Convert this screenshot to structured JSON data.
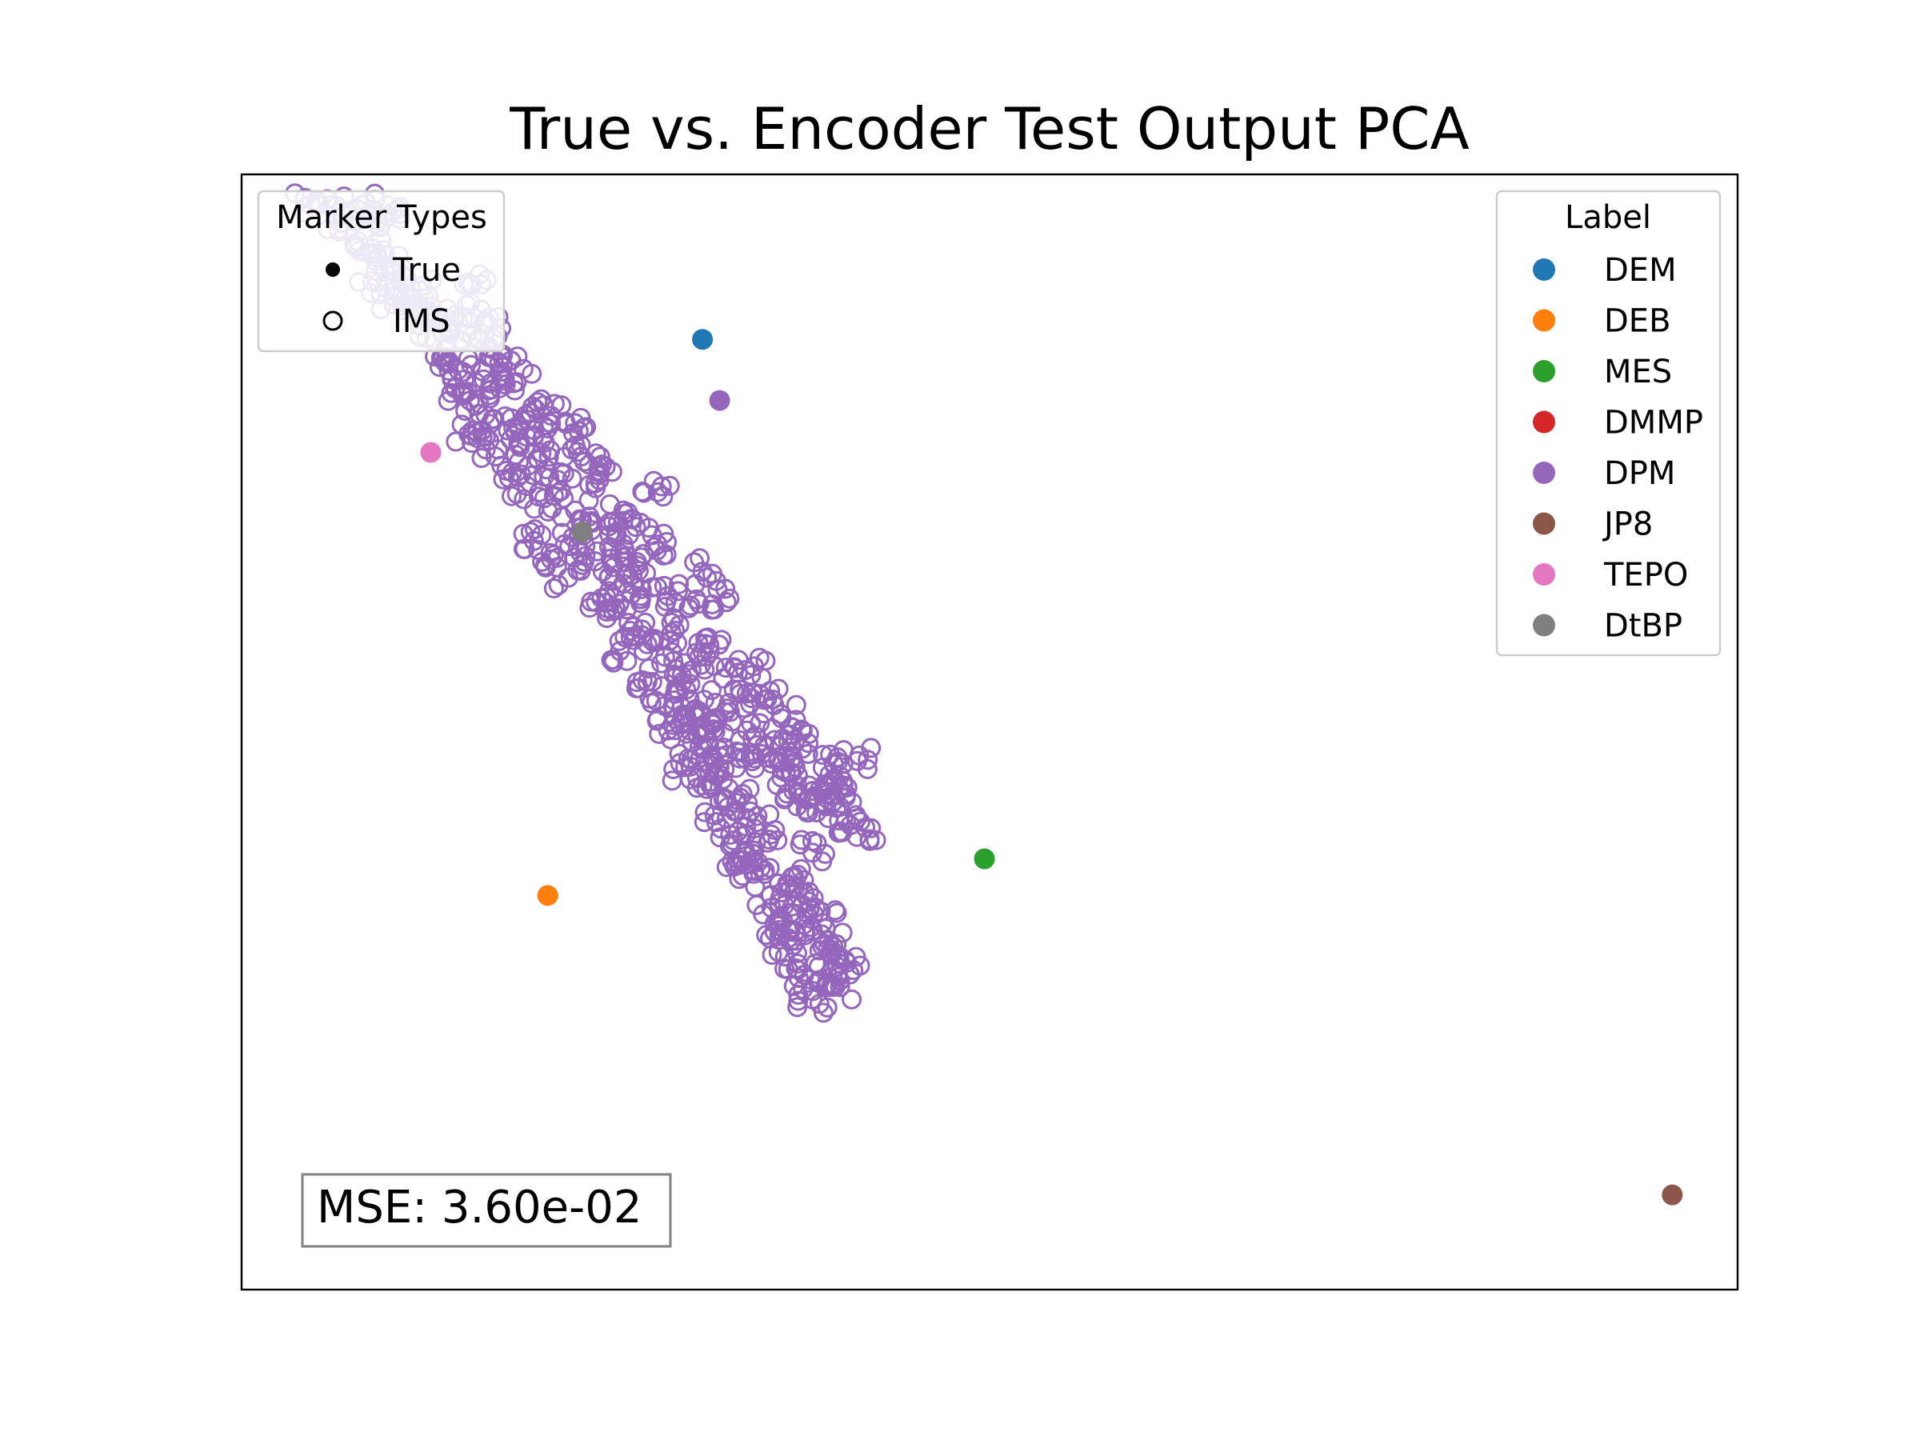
{
  "chart_data": {
    "type": "scatter",
    "title": "True vs. Encoder Test Output PCA",
    "xlabel": "",
    "ylabel": "",
    "xlim": [
      -1.3,
      3.05
    ],
    "ylim": [
      -2.35,
      1.3
    ],
    "ticks_visible": false,
    "grid": false,
    "annotation": "MSE: 3.60e-02",
    "annotation_position": "bottom-left",
    "marker_legend": {
      "title": "Marker Types",
      "position": "top-left",
      "entries": [
        {
          "label": "True",
          "marker": "filled-circle",
          "color": "#000000"
        },
        {
          "label": "IMS",
          "marker": "open-circle",
          "color": "#000000"
        }
      ]
    },
    "label_legend": {
      "title": "Label",
      "position": "top-right",
      "entries": [
        {
          "label": "DEM",
          "color": "#1f77b4"
        },
        {
          "label": "DEB",
          "color": "#ff7f0e"
        },
        {
          "label": "MES",
          "color": "#2ca02c"
        },
        {
          "label": "DMMP",
          "color": "#d62728"
        },
        {
          "label": "DPM",
          "color": "#9467bd"
        },
        {
          "label": "JP8",
          "color": "#8c564b"
        },
        {
          "label": "TEPO",
          "color": "#e377c2"
        },
        {
          "label": "DtBP",
          "color": "#7f7f7f"
        }
      ]
    },
    "series": [
      {
        "name": "DEM",
        "marker": "True",
        "color": "#1f77b4",
        "points": [
          [
            0.04,
            0.76
          ]
        ]
      },
      {
        "name": "DEB",
        "marker": "True",
        "color": "#ff7f0e",
        "points": [
          [
            -0.41,
            -1.06
          ]
        ]
      },
      {
        "name": "MES",
        "marker": "True",
        "color": "#2ca02c",
        "points": [
          [
            0.86,
            -0.94
          ]
        ]
      },
      {
        "name": "DPM",
        "marker": "True",
        "color": "#9467bd",
        "points": [
          [
            0.09,
            0.56
          ]
        ]
      },
      {
        "name": "JP8",
        "marker": "True",
        "color": "#8c564b",
        "points": [
          [
            2.86,
            -2.04
          ]
        ]
      },
      {
        "name": "TEPO",
        "marker": "True",
        "color": "#e377c2",
        "points": [
          [
            -0.75,
            0.39
          ]
        ]
      },
      {
        "name": "DtBP",
        "marker": "True",
        "color": "#7f7f7f",
        "points": [
          [
            -0.31,
            0.13
          ]
        ]
      },
      {
        "name": "DPM",
        "marker": "IMS",
        "color": "#9467bd",
        "description_points": "dense cloud of open circles along a diagonal band",
        "points": [
          [
            -1.1,
            1.2
          ],
          [
            -1.04,
            1.2
          ],
          [
            -0.95,
            1.2
          ],
          [
            -1.01,
            1.14
          ],
          [
            -0.96,
            1.08
          ],
          [
            -0.92,
            1.04
          ],
          [
            -0.87,
            1.0
          ],
          [
            -0.82,
            0.96
          ],
          [
            -0.78,
            0.92
          ],
          [
            -0.8,
            0.87
          ],
          [
            -0.76,
            0.83
          ],
          [
            -0.7,
            0.8
          ],
          [
            -0.68,
            0.84
          ],
          [
            -0.63,
            0.77
          ],
          [
            -0.58,
            0.73
          ],
          [
            -0.72,
            0.7
          ],
          [
            -0.67,
            0.66
          ],
          [
            -0.62,
            0.62
          ],
          [
            -0.55,
            0.6
          ],
          [
            -0.61,
            0.55
          ],
          [
            -0.57,
            0.5
          ],
          [
            -0.51,
            0.47
          ],
          [
            -0.46,
            0.52
          ],
          [
            -0.49,
            0.42
          ],
          [
            -0.44,
            0.37
          ],
          [
            -0.53,
            0.33
          ],
          [
            -0.47,
            0.28
          ],
          [
            -0.42,
            0.24
          ],
          [
            -0.38,
            0.3
          ],
          [
            -0.34,
            0.4
          ],
          [
            -0.29,
            0.35
          ],
          [
            -0.33,
            0.2
          ],
          [
            -0.28,
            0.16
          ],
          [
            -0.23,
            0.12
          ],
          [
            -0.19,
            0.2
          ],
          [
            -0.14,
            0.16
          ],
          [
            -0.36,
            0.09
          ],
          [
            -0.3,
            0.05
          ],
          [
            -0.25,
            0.0
          ],
          [
            -0.19,
            -0.04
          ],
          [
            -0.14,
            -0.08
          ],
          [
            -0.22,
            -0.13
          ],
          [
            -0.16,
            -0.18
          ],
          [
            -0.1,
            -0.22
          ],
          [
            -0.05,
            -0.2
          ],
          [
            -0.08,
            -0.3
          ],
          [
            -0.02,
            -0.34
          ],
          [
            0.03,
            -0.28
          ],
          [
            -0.04,
            -0.4
          ],
          [
            0.02,
            -0.45
          ],
          [
            0.07,
            -0.5
          ],
          [
            0.12,
            -0.46
          ],
          [
            0.17,
            -0.52
          ],
          [
            0.22,
            -0.57
          ],
          [
            0.26,
            -0.62
          ],
          [
            0.3,
            -0.66
          ],
          [
            0.35,
            -0.7
          ],
          [
            0.4,
            -0.73
          ],
          [
            0.44,
            -0.77
          ],
          [
            0.47,
            -0.83
          ],
          [
            0.34,
            -0.78
          ],
          [
            0.28,
            -0.74
          ],
          [
            0.05,
            -0.62
          ],
          [
            0.1,
            -0.68
          ],
          [
            0.15,
            -0.74
          ],
          [
            0.2,
            -0.8
          ],
          [
            0.24,
            -0.86
          ],
          [
            0.17,
            -0.93
          ],
          [
            0.22,
            -0.99
          ],
          [
            0.27,
            -1.05
          ],
          [
            0.31,
            -1.12
          ],
          [
            0.34,
            -1.18
          ],
          [
            0.38,
            -1.24
          ],
          [
            0.42,
            -1.3
          ],
          [
            0.4,
            -1.36
          ],
          [
            0.36,
            -1.4
          ],
          [
            0.32,
            -1.33
          ],
          [
            0.28,
            -1.26
          ],
          [
            0.44,
            -1.36
          ],
          [
            0.26,
            -1.16
          ],
          [
            0.13,
            -0.88
          ],
          [
            0.08,
            -0.82
          ],
          [
            0.01,
            -0.56
          ],
          [
            -0.06,
            -0.52
          ],
          [
            0.19,
            -0.31
          ],
          [
            0.11,
            -0.1
          ],
          [
            0.04,
            0.0
          ],
          [
            -0.09,
            0.26
          ],
          [
            0.22,
            -0.42
          ],
          [
            0.31,
            -0.55
          ],
          [
            0.53,
            -0.84
          ],
          [
            0.49,
            -0.62
          ],
          [
            0.39,
            -0.6
          ],
          [
            -0.63,
            0.94
          ],
          [
            -0.58,
            0.83
          ],
          [
            -0.84,
            1.17
          ],
          [
            -0.9,
            1.13
          ],
          [
            -0.54,
            0.71
          ],
          [
            -0.4,
            0.51
          ],
          [
            -0.32,
            0.46
          ],
          [
            -0.1,
            0.08
          ],
          [
            0.0,
            -0.12
          ],
          [
            0.18,
            -0.6
          ],
          [
            0.36,
            -0.92
          ],
          [
            0.3,
            -1.0
          ],
          [
            0.35,
            -1.08
          ],
          [
            0.39,
            -1.15
          ],
          [
            0.43,
            -1.22
          ],
          [
            0.46,
            -1.28
          ],
          [
            0.29,
            -1.2
          ],
          [
            0.24,
            -1.1
          ],
          [
            0.19,
            -0.98
          ],
          [
            0.14,
            -0.94
          ],
          [
            0.09,
            -0.75
          ],
          [
            0.04,
            -0.7
          ],
          [
            -0.01,
            -0.64
          ],
          [
            0.27,
            -0.48
          ],
          [
            0.33,
            -0.58
          ],
          [
            0.42,
            -0.68
          ],
          [
            0.45,
            -0.7
          ],
          [
            -0.45,
            0.1
          ],
          [
            -0.4,
            0.04
          ],
          [
            -0.35,
            -0.02
          ],
          [
            -0.27,
            -0.1
          ],
          [
            -0.2,
            -0.26
          ],
          [
            -0.12,
            -0.36
          ],
          [
            -0.07,
            -0.44
          ],
          [
            0.0,
            -0.5
          ],
          [
            0.06,
            -0.56
          ],
          [
            0.11,
            -0.6
          ],
          [
            -0.68,
            0.6
          ],
          [
            -0.64,
            0.45
          ],
          [
            -0.59,
            0.4
          ],
          [
            -0.26,
            0.3
          ],
          [
            -0.2,
            0.06
          ],
          [
            -0.15,
            0.02
          ],
          [
            -0.06,
            -0.08
          ],
          [
            0.06,
            -0.24
          ],
          [
            0.1,
            -0.35
          ],
          [
            0.15,
            -0.4
          ],
          [
            -0.92,
            0.95
          ],
          [
            -0.86,
            0.9
          ],
          [
            -0.74,
            0.76
          ],
          [
            -0.5,
            0.62
          ],
          [
            -0.45,
            0.44
          ]
        ]
      }
    ]
  }
}
